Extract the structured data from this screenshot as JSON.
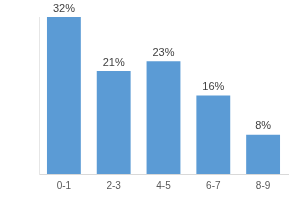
{
  "chart_data": {
    "type": "bar",
    "categories": [
      "0-1",
      "2-3",
      "4-5",
      "6-7",
      "8-9"
    ],
    "values": [
      32,
      21,
      23,
      16,
      8
    ],
    "value_labels": [
      "32%",
      "21%",
      "23%",
      "16%",
      "8%"
    ],
    "color": "#5b9bd5",
    "ylim": [
      0,
      32
    ],
    "grid": false,
    "data_labels": true,
    "tick_labels": "x"
  }
}
